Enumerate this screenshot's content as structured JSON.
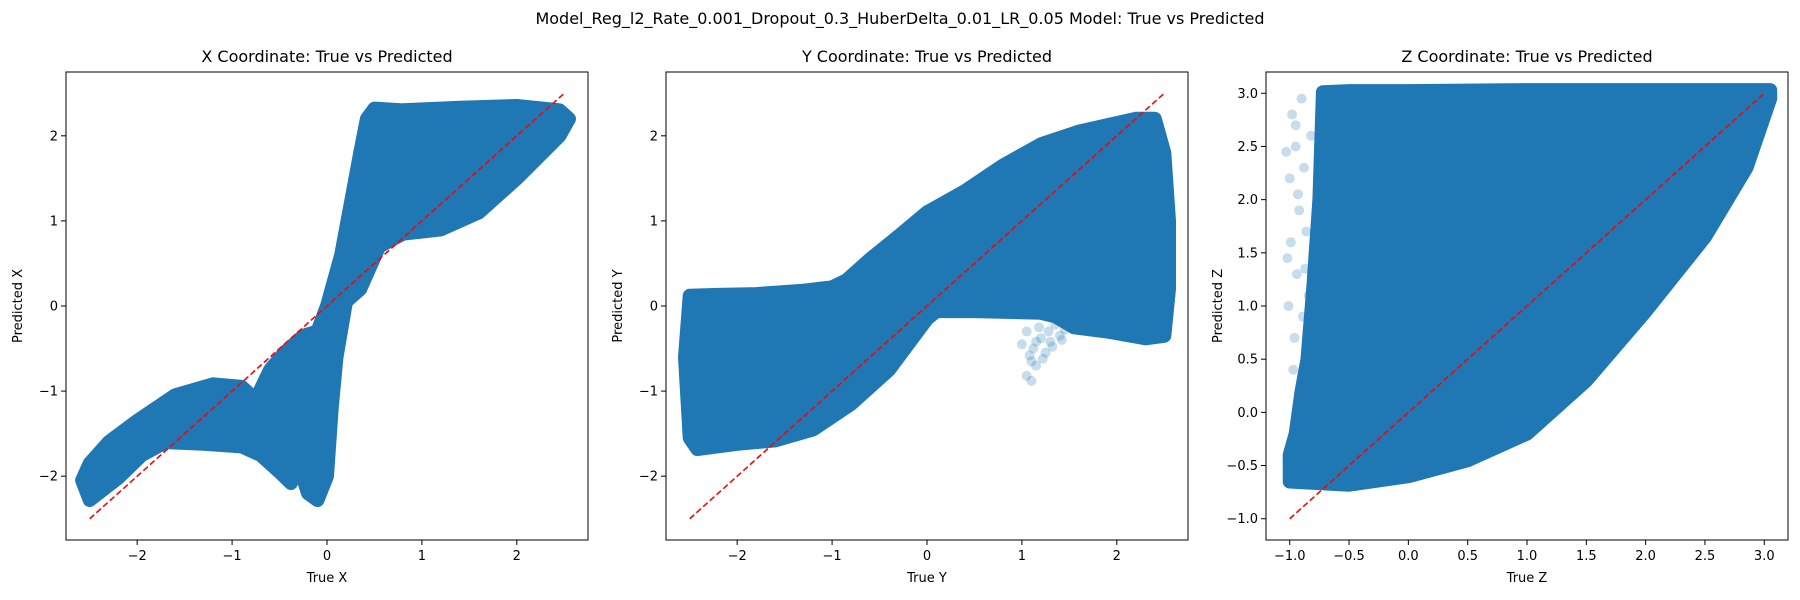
{
  "figure": {
    "suptitle": "Model_Reg_l2_Rate_0.001_Dropout_0.3_HuberDelta_0.01_LR_0.05 Model: True vs Predicted"
  },
  "colors": {
    "scatter": "#1f77b4",
    "reference_line": "#ff0000",
    "axes": "#000000"
  },
  "chart_data": [
    {
      "type": "scatter",
      "title": "X Coordinate: True vs Predicted",
      "xlabel": "True X",
      "ylabel": "Predicted X",
      "xlim": [
        -2.75,
        2.75
      ],
      "ylim": [
        -2.75,
        2.75
      ],
      "xticks": [
        -2,
        -1,
        0,
        1,
        2
      ],
      "yticks": [
        -2,
        -1,
        0,
        1,
        2
      ],
      "xtick_labels": [
        "−2",
        "−1",
        "0",
        "1",
        "2"
      ],
      "ytick_labels": [
        "−2",
        "−1",
        "0",
        "1",
        "2"
      ],
      "reference_line": {
        "x": [
          -2.5,
          2.5
        ],
        "y": [
          -2.5,
          2.5
        ]
      },
      "dense_region": [
        [
          -2.5,
          -2.28
        ],
        [
          -2.2,
          -2.02
        ],
        [
          -1.95,
          -1.75
        ],
        [
          -1.7,
          -1.6
        ],
        [
          -1.3,
          -1.62
        ],
        [
          -0.9,
          -1.65
        ],
        [
          -0.7,
          -1.75
        ],
        [
          -0.5,
          -1.95
        ],
        [
          -0.38,
          -2.08
        ],
        [
          -0.3,
          -1.85
        ],
        [
          -0.2,
          -2.2
        ],
        [
          -0.1,
          -2.28
        ],
        [
          0.0,
          -2.0
        ],
        [
          0.05,
          -1.2
        ],
        [
          0.1,
          -0.6
        ],
        [
          0.2,
          0.05
        ],
        [
          0.35,
          0.2
        ],
        [
          0.55,
          0.7
        ],
        [
          0.8,
          0.85
        ],
        [
          1.2,
          0.9
        ],
        [
          1.6,
          1.1
        ],
        [
          2.0,
          1.5
        ],
        [
          2.45,
          2.0
        ],
        [
          2.55,
          2.2
        ],
        [
          2.45,
          2.3
        ],
        [
          2.0,
          2.35
        ],
        [
          1.4,
          2.33
        ],
        [
          0.8,
          2.3
        ],
        [
          0.5,
          2.32
        ],
        [
          0.42,
          2.2
        ],
        [
          0.35,
          1.8
        ],
        [
          0.25,
          1.2
        ],
        [
          0.15,
          0.6
        ],
        [
          0.0,
          0.0
        ],
        [
          -0.1,
          -0.3
        ],
        [
          -0.25,
          -0.35
        ],
        [
          -0.45,
          -0.55
        ],
        [
          -0.6,
          -0.75
        ],
        [
          -0.75,
          -1.1
        ],
        [
          -0.9,
          -0.95
        ],
        [
          -1.2,
          -0.92
        ],
        [
          -1.6,
          -1.05
        ],
        [
          -2.0,
          -1.35
        ],
        [
          -2.3,
          -1.6
        ],
        [
          -2.5,
          -1.85
        ],
        [
          -2.58,
          -2.05
        ]
      ],
      "sparse_points": []
    },
    {
      "type": "scatter",
      "title": "Y Coordinate: True vs Predicted",
      "xlabel": "True Y",
      "ylabel": "Predicted Y",
      "xlim": [
        -2.75,
        2.75
      ],
      "ylim": [
        -2.75,
        2.75
      ],
      "xticks": [
        -2,
        -1,
        0,
        1,
        2
      ],
      "yticks": [
        -2,
        -1,
        0,
        1,
        2
      ],
      "xtick_labels": [
        "−2",
        "−1",
        "0",
        "1",
        "2"
      ],
      "ytick_labels": [
        "−2",
        "−1",
        "0",
        "1",
        "2"
      ],
      "reference_line": {
        "x": [
          -2.5,
          2.5
        ],
        "y": [
          -2.5,
          2.5
        ]
      },
      "dense_region": [
        [
          -2.5,
          -1.55
        ],
        [
          -2.42,
          -1.68
        ],
        [
          -2.0,
          -1.62
        ],
        [
          -1.6,
          -1.58
        ],
        [
          -1.2,
          -1.45
        ],
        [
          -0.8,
          -1.15
        ],
        [
          -0.4,
          -0.75
        ],
        [
          -0.2,
          -0.45
        ],
        [
          0.0,
          -0.15
        ],
        [
          0.1,
          -0.06
        ],
        [
          0.5,
          -0.06
        ],
        [
          0.9,
          -0.07
        ],
        [
          1.2,
          -0.08
        ],
        [
          1.35,
          -0.12
        ],
        [
          1.55,
          -0.25
        ],
        [
          1.9,
          -0.3
        ],
        [
          2.3,
          -0.38
        ],
        [
          2.5,
          -0.35
        ],
        [
          2.55,
          0.2
        ],
        [
          2.55,
          1.0
        ],
        [
          2.5,
          1.8
        ],
        [
          2.4,
          2.2
        ],
        [
          2.2,
          2.2
        ],
        [
          2.0,
          2.15
        ],
        [
          1.6,
          2.05
        ],
        [
          1.2,
          1.9
        ],
        [
          0.8,
          1.65
        ],
        [
          0.4,
          1.35
        ],
        [
          0.0,
          1.1
        ],
        [
          -0.3,
          0.82
        ],
        [
          -0.6,
          0.55
        ],
        [
          -0.85,
          0.3
        ],
        [
          -1.0,
          0.22
        ],
        [
          -1.3,
          0.18
        ],
        [
          -1.8,
          0.14
        ],
        [
          -2.2,
          0.13
        ],
        [
          -2.5,
          0.12
        ],
        [
          -2.55,
          -0.6
        ]
      ],
      "sparse_points": [
        [
          1.05,
          -0.82
        ],
        [
          1.1,
          -0.65
        ],
        [
          1.15,
          -0.7
        ],
        [
          1.0,
          -0.45
        ],
        [
          1.12,
          -0.5
        ],
        [
          1.25,
          -0.55
        ],
        [
          1.2,
          -0.38
        ],
        [
          1.3,
          -0.42
        ],
        [
          1.05,
          -0.3
        ],
        [
          1.18,
          -0.25
        ],
        [
          1.28,
          -0.3
        ],
        [
          1.4,
          -0.35
        ],
        [
          1.35,
          -0.22
        ],
        [
          1.45,
          -0.28
        ],
        [
          1.1,
          -0.88
        ],
        [
          1.22,
          -0.62
        ],
        [
          1.08,
          -0.58
        ],
        [
          1.32,
          -0.48
        ],
        [
          1.15,
          -0.42
        ],
        [
          1.42,
          -0.4
        ]
      ]
    },
    {
      "type": "scatter",
      "title": "Z Coordinate: True vs Predicted",
      "xlabel": "True Z",
      "ylabel": "Predicted Z",
      "xlim": [
        -1.2,
        3.2
      ],
      "ylim": [
        -1.2,
        3.2
      ],
      "xticks": [
        -1.0,
        -0.5,
        0.0,
        0.5,
        1.0,
        1.5,
        2.0,
        2.5,
        3.0
      ],
      "yticks": [
        -1.0,
        -0.5,
        0.0,
        0.5,
        1.0,
        1.5,
        2.0,
        2.5,
        3.0
      ],
      "xtick_labels": [
        "−1.0",
        "−0.5",
        "0.0",
        "0.5",
        "1.0",
        "1.5",
        "2.0",
        "2.5",
        "3.0"
      ],
      "ytick_labels": [
        "−1.0",
        "−0.5",
        "0.0",
        "0.5",
        "1.0",
        "1.5",
        "2.0",
        "2.5",
        "3.0"
      ],
      "reference_line": {
        "x": [
          -1.0,
          3.0
        ],
        "y": [
          -1.0,
          3.0
        ]
      },
      "dense_region": [
        [
          -1.0,
          -0.65
        ],
        [
          -0.5,
          -0.68
        ],
        [
          0.0,
          -0.6
        ],
        [
          0.5,
          -0.45
        ],
        [
          1.0,
          -0.2
        ],
        [
          1.5,
          0.3
        ],
        [
          2.0,
          0.95
        ],
        [
          2.5,
          1.65
        ],
        [
          2.85,
          2.3
        ],
        [
          3.05,
          2.95
        ],
        [
          3.05,
          3.03
        ],
        [
          2.0,
          3.03
        ],
        [
          1.0,
          3.03
        ],
        [
          0.0,
          3.02
        ],
        [
          -0.5,
          3.02
        ],
        [
          -0.72,
          3.01
        ],
        [
          -0.75,
          2.0
        ],
        [
          -0.8,
          1.2
        ],
        [
          -0.85,
          0.5
        ],
        [
          -0.9,
          0.2
        ],
        [
          -0.95,
          -0.2
        ],
        [
          -1.0,
          -0.4
        ]
      ],
      "sparse_points": [
        [
          -0.98,
          2.8
        ],
        [
          -0.95,
          2.5
        ],
        [
          -1.0,
          2.2
        ],
        [
          -0.92,
          1.9
        ],
        [
          -0.99,
          1.6
        ],
        [
          -0.94,
          1.3
        ],
        [
          -1.01,
          1.0
        ],
        [
          -0.96,
          0.7
        ],
        [
          -0.9,
          2.95
        ],
        [
          -0.88,
          2.3
        ],
        [
          -0.86,
          1.7
        ],
        [
          -0.82,
          2.6
        ],
        [
          -0.84,
          1.1
        ],
        [
          -1.03,
          2.45
        ],
        [
          -0.97,
          0.4
        ],
        [
          -0.93,
          2.05
        ],
        [
          -1.02,
          1.45
        ],
        [
          -0.89,
          0.9
        ],
        [
          -0.95,
          2.7
        ],
        [
          -0.87,
          1.35
        ]
      ]
    }
  ]
}
